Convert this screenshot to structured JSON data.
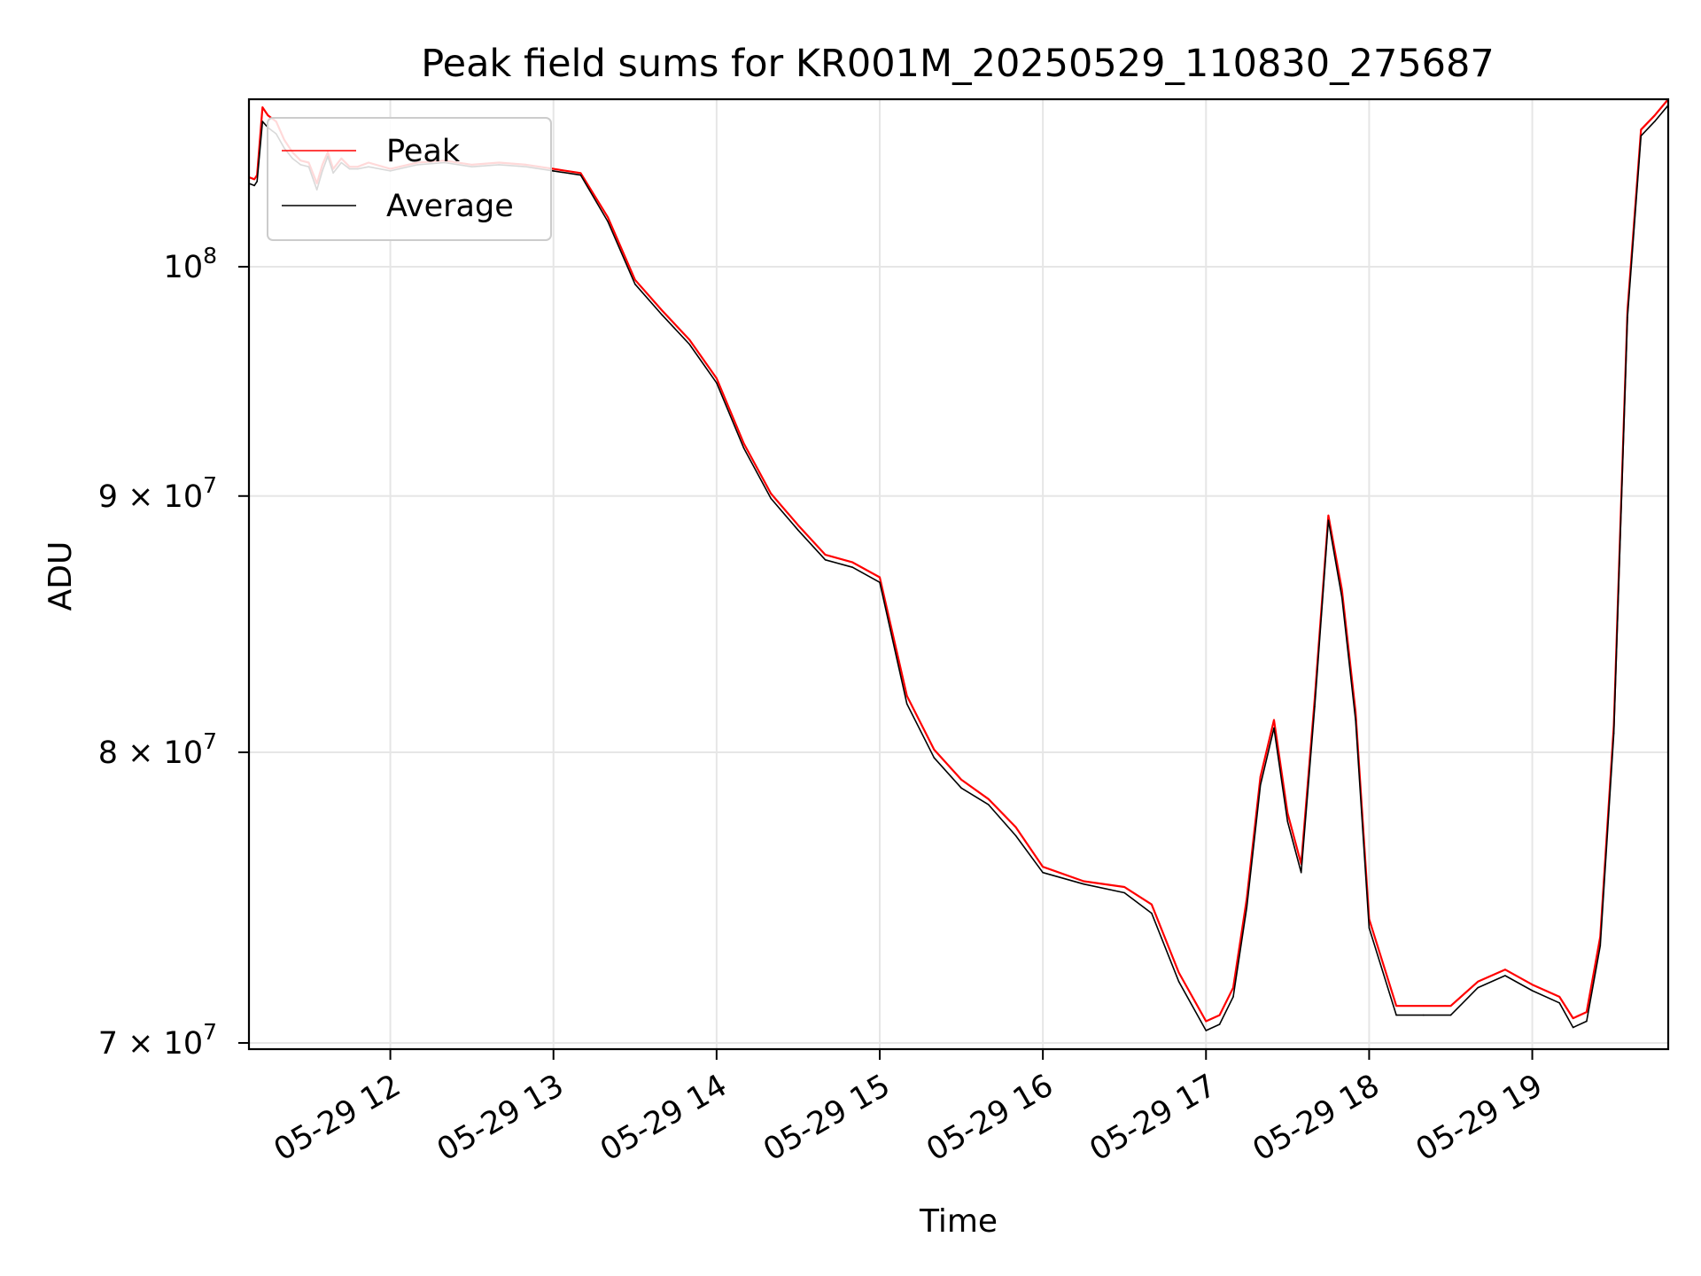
{
  "chart_data": {
    "type": "line",
    "title": "Peak field sums for KR001M_20250529_110830_275687",
    "xlabel": "Time",
    "ylabel": "ADU",
    "x_scale": "time",
    "y_scale": "log",
    "xlim": [
      "2025-05-29 11:08",
      "2025-05-29 19:50"
    ],
    "ylim": [
      69800000,
      108000000
    ],
    "grid": true,
    "legend_position": "upper-left",
    "x_ticks": [
      {
        "value": "2025-05-29 12:00",
        "label": "05-29 12"
      },
      {
        "value": "2025-05-29 13:00",
        "label": "05-29 13"
      },
      {
        "value": "2025-05-29 14:00",
        "label": "05-29 14"
      },
      {
        "value": "2025-05-29 15:00",
        "label": "05-29 15"
      },
      {
        "value": "2025-05-29 16:00",
        "label": "05-29 16"
      },
      {
        "value": "2025-05-29 17:00",
        "label": "05-29 17"
      },
      {
        "value": "2025-05-29 18:00",
        "label": "05-29 18"
      },
      {
        "value": "2025-05-29 19:00",
        "label": "05-29 19"
      }
    ],
    "y_ticks": [
      {
        "value": 70000000,
        "label_base": "7 × 10",
        "label_exp": "7"
      },
      {
        "value": 80000000,
        "label_base": "8 × 10",
        "label_exp": "7"
      },
      {
        "value": 90000000,
        "label_base": "9 × 10",
        "label_exp": "7"
      },
      {
        "value": 100000000,
        "label_base": "10",
        "label_exp": "8"
      }
    ],
    "series": [
      {
        "name": "Peak",
        "color": "#ff0000",
        "x": [
          "2025-05-29 11:08",
          "2025-05-29 11:10",
          "2025-05-29 11:11",
          "2025-05-29 11:13",
          "2025-05-29 11:15",
          "2025-05-29 11:18",
          "2025-05-29 11:21",
          "2025-05-29 11:24",
          "2025-05-29 11:27",
          "2025-05-29 11:30",
          "2025-05-29 11:33",
          "2025-05-29 11:35",
          "2025-05-29 11:37",
          "2025-05-29 11:39",
          "2025-05-29 11:42",
          "2025-05-29 11:45",
          "2025-05-29 11:48",
          "2025-05-29 11:52",
          "2025-05-29 12:00",
          "2025-05-29 12:10",
          "2025-05-29 12:20",
          "2025-05-29 12:30",
          "2025-05-29 12:40",
          "2025-05-29 12:50",
          "2025-05-29 13:00",
          "2025-05-29 13:10",
          "2025-05-29 13:20",
          "2025-05-29 13:30",
          "2025-05-29 13:40",
          "2025-05-29 13:50",
          "2025-05-29 14:00",
          "2025-05-29 14:10",
          "2025-05-29 14:20",
          "2025-05-29 14:30",
          "2025-05-29 14:40",
          "2025-05-29 14:50",
          "2025-05-29 15:00",
          "2025-05-29 15:10",
          "2025-05-29 15:20",
          "2025-05-29 15:30",
          "2025-05-29 15:40",
          "2025-05-29 15:50",
          "2025-05-29 16:00",
          "2025-05-29 16:15",
          "2025-05-29 16:30",
          "2025-05-29 16:40",
          "2025-05-29 16:50",
          "2025-05-29 17:00",
          "2025-05-29 17:05",
          "2025-05-29 17:10",
          "2025-05-29 17:15",
          "2025-05-29 17:20",
          "2025-05-29 17:25",
          "2025-05-29 17:30",
          "2025-05-29 17:35",
          "2025-05-29 17:40",
          "2025-05-29 17:45",
          "2025-05-29 17:50",
          "2025-05-29 17:55",
          "2025-05-29 18:00",
          "2025-05-29 18:10",
          "2025-05-29 18:20",
          "2025-05-29 18:30",
          "2025-05-29 18:40",
          "2025-05-29 18:50",
          "2025-05-29 19:00",
          "2025-05-29 19:10",
          "2025-05-29 19:15",
          "2025-05-29 19:20",
          "2025-05-29 19:25",
          "2025-05-29 19:30",
          "2025-05-29 19:35",
          "2025-05-29 19:40",
          "2025-05-29 19:45",
          "2025-05-29 19:50"
        ],
        "values": [
          104200000,
          104100000,
          104300000,
          107600000,
          107200000,
          106900000,
          106000000,
          105400000,
          105000000,
          104900000,
          103900000,
          104800000,
          105400000,
          104600000,
          105100000,
          104700000,
          104700000,
          104900000,
          104600000,
          104900000,
          105000000,
          104800000,
          104900000,
          104800000,
          104600000,
          104400000,
          102300000,
          99400000,
          98000000,
          96700000,
          95000000,
          92200000,
          90100000,
          88800000,
          87600000,
          87300000,
          86700000,
          82100000,
          80100000,
          79000000,
          78300000,
          77300000,
          75900000,
          75400000,
          75200000,
          74600000,
          72300000,
          70700000,
          70900000,
          71800000,
          74800000,
          79100000,
          81200000,
          77800000,
          76000000,
          82000000,
          89200000,
          86200000,
          81500000,
          74100000,
          71200000,
          71200000,
          71200000,
          72000000,
          72400000,
          71900000,
          71500000,
          70800000,
          71000000,
          73500000,
          81000000,
          98000000,
          106500000,
          107200000,
          108000000
        ]
      },
      {
        "name": "Average",
        "color": "#000000",
        "x": [
          "2025-05-29 11:08",
          "2025-05-29 11:10",
          "2025-05-29 11:11",
          "2025-05-29 11:13",
          "2025-05-29 11:15",
          "2025-05-29 11:18",
          "2025-05-29 11:21",
          "2025-05-29 11:24",
          "2025-05-29 11:27",
          "2025-05-29 11:30",
          "2025-05-29 11:33",
          "2025-05-29 11:35",
          "2025-05-29 11:37",
          "2025-05-29 11:39",
          "2025-05-29 11:42",
          "2025-05-29 11:45",
          "2025-05-29 11:48",
          "2025-05-29 11:52",
          "2025-05-29 12:00",
          "2025-05-29 12:10",
          "2025-05-29 12:20",
          "2025-05-29 12:30",
          "2025-05-29 12:40",
          "2025-05-29 12:50",
          "2025-05-29 13:00",
          "2025-05-29 13:10",
          "2025-05-29 13:20",
          "2025-05-29 13:30",
          "2025-05-29 13:40",
          "2025-05-29 13:50",
          "2025-05-29 14:00",
          "2025-05-29 14:10",
          "2025-05-29 14:20",
          "2025-05-29 14:30",
          "2025-05-29 14:40",
          "2025-05-29 14:50",
          "2025-05-29 15:00",
          "2025-05-29 15:10",
          "2025-05-29 15:20",
          "2025-05-29 15:30",
          "2025-05-29 15:40",
          "2025-05-29 15:50",
          "2025-05-29 16:00",
          "2025-05-29 16:15",
          "2025-05-29 16:30",
          "2025-05-29 16:40",
          "2025-05-29 16:50",
          "2025-05-29 17:00",
          "2025-05-29 17:05",
          "2025-05-29 17:10",
          "2025-05-29 17:15",
          "2025-05-29 17:20",
          "2025-05-29 17:25",
          "2025-05-29 17:30",
          "2025-05-29 17:35",
          "2025-05-29 17:40",
          "2025-05-29 17:45",
          "2025-05-29 17:50",
          "2025-05-29 17:55",
          "2025-05-29 18:00",
          "2025-05-29 18:10",
          "2025-05-29 18:20",
          "2025-05-29 18:30",
          "2025-05-29 18:40",
          "2025-05-29 18:50",
          "2025-05-29 19:00",
          "2025-05-29 19:10",
          "2025-05-29 19:15",
          "2025-05-29 19:20",
          "2025-05-29 19:25",
          "2025-05-29 19:30",
          "2025-05-29 19:35",
          "2025-05-29 19:40",
          "2025-05-29 19:45",
          "2025-05-29 19:50"
        ],
        "values": [
          103900000,
          103800000,
          104000000,
          106900000,
          106600000,
          106300000,
          105600000,
          105100000,
          104800000,
          104700000,
          103600000,
          104500000,
          105200000,
          104400000,
          104900000,
          104600000,
          104600000,
          104700000,
          104500000,
          104800000,
          104900000,
          104700000,
          104800000,
          104700000,
          104500000,
          104300000,
          102100000,
          99200000,
          97800000,
          96500000,
          94800000,
          92000000,
          89900000,
          88600000,
          87400000,
          87100000,
          86500000,
          81800000,
          79800000,
          78700000,
          78100000,
          77000000,
          75700000,
          75300000,
          75000000,
          74300000,
          72000000,
          70400000,
          70600000,
          71500000,
          74500000,
          78800000,
          80900000,
          77500000,
          75700000,
          81700000,
          89000000,
          85900000,
          81200000,
          73800000,
          70900000,
          70900000,
          70900000,
          71800000,
          72200000,
          71700000,
          71300000,
          70500000,
          70700000,
          73200000,
          80700000,
          97700000,
          106200000,
          106900000,
          107700000
        ]
      }
    ]
  }
}
